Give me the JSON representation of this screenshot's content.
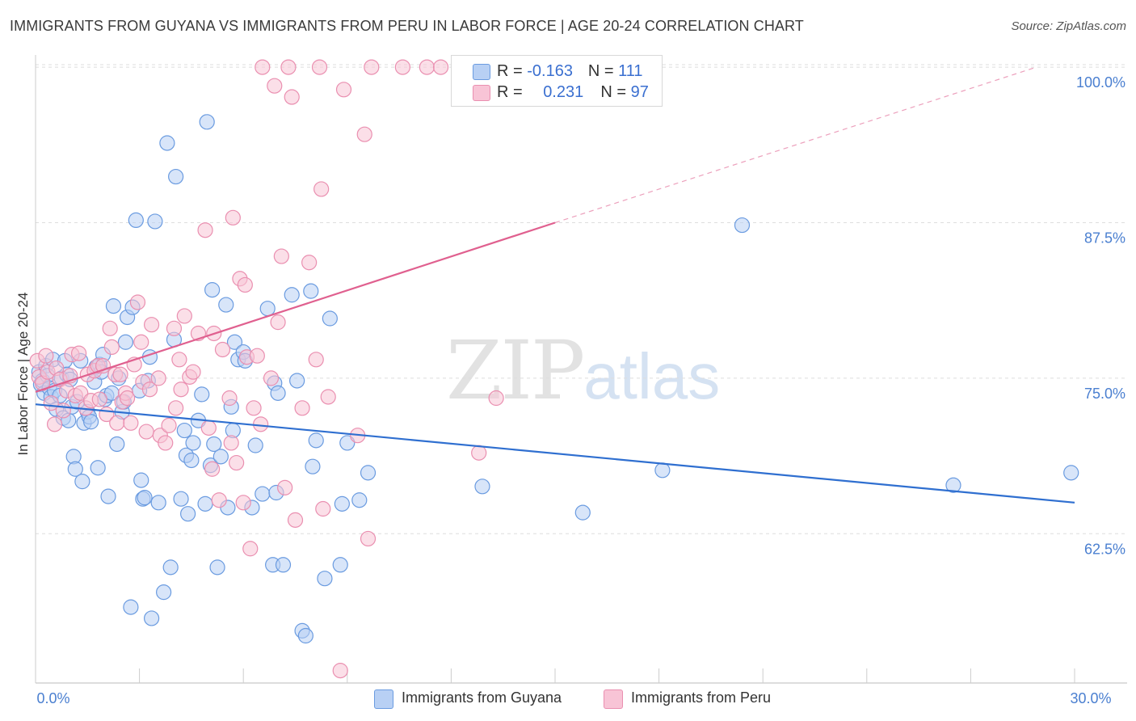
{
  "header": {
    "title": "IMMIGRANTS FROM GUYANA VS IMMIGRANTS FROM PERU IN LABOR FORCE | AGE 20-24 CORRELATION CHART",
    "source": "Source: ZipAtlas.com"
  },
  "watermark": {
    "zip": "ZIP",
    "atlas": "atlas"
  },
  "legend": {
    "rows": [
      {
        "r_label": "R =",
        "r_value": "-0.163",
        "n_label": "N =",
        "n_value": "111"
      },
      {
        "r_label": "R =",
        "r_value": "0.231",
        "n_label": "N =",
        "n_value": "97"
      }
    ]
  },
  "colors": {
    "guyana_fill": "#b8d0f4",
    "guyana_stroke": "#6a9be0",
    "guyana_line": "#2f6fd0",
    "peru_fill": "#f8c4d6",
    "peru_stroke": "#ea8fb0",
    "peru_line": "#e0608f",
    "grid": "#dddddd",
    "tick_label": "#4a7fd0"
  },
  "chart_data": {
    "type": "scatter",
    "title": "IMMIGRANTS FROM GUYANA VS IMMIGRANTS FROM PERU IN LABOR FORCE | AGE 20-24 CORRELATION CHART",
    "xlabel": "",
    "ylabel": "In Labor Force | Age 20-24",
    "xlim": [
      0,
      30
    ],
    "ylim": [
      50.5,
      101.5
    ],
    "x_tick_labels": [
      {
        "value": 0,
        "label": "0.0%"
      },
      {
        "value": 30,
        "label": "30.0%"
      }
    ],
    "x_minor_ticks": [
      0,
      3,
      6,
      9,
      12,
      15,
      18,
      21,
      24,
      27,
      30
    ],
    "y_ticks": [
      {
        "value": 100,
        "label": "100.0%"
      },
      {
        "value": 87.5,
        "label": "87.5%"
      },
      {
        "value": 75,
        "label": "75.0%"
      },
      {
        "value": 62.5,
        "label": "62.5%"
      }
    ],
    "grid": true,
    "legend_position": "top-center and bottom",
    "series": [
      {
        "name": "Immigrants from Guyana",
        "R": -0.163,
        "N": 111,
        "trend": {
          "x0": 0,
          "y0": 72.9,
          "x1": 30,
          "y1": 65.0,
          "dashed_to": null
        },
        "points": [
          [
            0.1,
            75.5
          ],
          [
            0.15,
            74.5
          ],
          [
            0.2,
            74.8
          ],
          [
            0.25,
            73.8
          ],
          [
            0.3,
            76.0
          ],
          [
            0.35,
            75.2
          ],
          [
            0.4,
            74.2
          ],
          [
            0.45,
            73.5
          ],
          [
            0.5,
            76.5
          ],
          [
            0.55,
            74.0
          ],
          [
            0.6,
            72.5
          ],
          [
            0.7,
            73.6
          ],
          [
            0.75,
            75.0
          ],
          [
            0.8,
            71.8
          ],
          [
            0.85,
            76.4
          ],
          [
            0.9,
            75.3
          ],
          [
            0.95,
            71.6
          ],
          [
            1.0,
            74.9
          ],
          [
            1.05,
            72.7
          ],
          [
            1.1,
            68.7
          ],
          [
            1.15,
            67.7
          ],
          [
            1.2,
            73.1
          ],
          [
            1.3,
            76.4
          ],
          [
            1.35,
            66.7
          ],
          [
            1.4,
            71.4
          ],
          [
            1.5,
            72.3
          ],
          [
            1.55,
            71.9
          ],
          [
            1.6,
            71.5
          ],
          [
            1.7,
            74.7
          ],
          [
            1.75,
            75.9
          ],
          [
            1.8,
            67.8
          ],
          [
            1.85,
            76.1
          ],
          [
            1.9,
            75.5
          ],
          [
            1.95,
            76.9
          ],
          [
            2.0,
            73.3
          ],
          [
            2.05,
            73.6
          ],
          [
            2.1,
            65.5
          ],
          [
            2.2,
            73.8
          ],
          [
            2.25,
            80.8
          ],
          [
            2.35,
            69.7
          ],
          [
            2.4,
            75.0
          ],
          [
            2.5,
            72.3
          ],
          [
            2.55,
            73.1
          ],
          [
            2.6,
            77.9
          ],
          [
            2.65,
            79.9
          ],
          [
            2.75,
            56.6
          ],
          [
            2.8,
            80.7
          ],
          [
            2.9,
            87.7
          ],
          [
            3.0,
            74.0
          ],
          [
            3.05,
            66.8
          ],
          [
            3.1,
            65.3
          ],
          [
            3.15,
            65.4
          ],
          [
            3.25,
            74.8
          ],
          [
            3.3,
            76.7
          ],
          [
            3.35,
            55.7
          ],
          [
            3.45,
            87.6
          ],
          [
            3.55,
            65.0
          ],
          [
            3.7,
            57.8
          ],
          [
            3.8,
            93.9
          ],
          [
            3.9,
            59.8
          ],
          [
            4.0,
            78.1
          ],
          [
            4.05,
            91.2
          ],
          [
            4.2,
            65.3
          ],
          [
            4.3,
            70.8
          ],
          [
            4.35,
            68.8
          ],
          [
            4.4,
            64.1
          ],
          [
            4.5,
            68.4
          ],
          [
            4.55,
            69.8
          ],
          [
            4.7,
            71.6
          ],
          [
            4.8,
            73.7
          ],
          [
            4.9,
            64.9
          ],
          [
            4.95,
            95.6
          ],
          [
            5.05,
            68.0
          ],
          [
            5.1,
            82.1
          ],
          [
            5.15,
            69.7
          ],
          [
            5.25,
            59.8
          ],
          [
            5.35,
            68.7
          ],
          [
            5.5,
            80.9
          ],
          [
            5.55,
            64.6
          ],
          [
            5.65,
            72.7
          ],
          [
            5.7,
            70.8
          ],
          [
            5.75,
            77.9
          ],
          [
            5.85,
            76.5
          ],
          [
            6.0,
            77.1
          ],
          [
            6.05,
            76.4
          ],
          [
            6.25,
            64.6
          ],
          [
            6.35,
            69.6
          ],
          [
            6.55,
            65.7
          ],
          [
            6.7,
            80.6
          ],
          [
            6.85,
            60.0
          ],
          [
            6.9,
            74.6
          ],
          [
            6.95,
            65.8
          ],
          [
            7.0,
            73.8
          ],
          [
            7.15,
            60.0
          ],
          [
            7.4,
            81.7
          ],
          [
            7.55,
            74.8
          ],
          [
            7.7,
            54.7
          ],
          [
            7.8,
            54.3
          ],
          [
            7.95,
            82.0
          ],
          [
            8.0,
            67.9
          ],
          [
            8.1,
            70.0
          ],
          [
            8.35,
            58.9
          ],
          [
            8.5,
            79.8
          ],
          [
            8.8,
            60.0
          ],
          [
            8.85,
            64.9
          ],
          [
            9.0,
            69.8
          ],
          [
            9.35,
            65.2
          ],
          [
            9.6,
            67.4
          ],
          [
            12.9,
            66.3
          ],
          [
            15.8,
            64.2
          ],
          [
            18.1,
            67.6
          ],
          [
            20.4,
            87.3
          ],
          [
            26.5,
            66.4
          ],
          [
            29.9,
            67.4
          ]
        ]
      },
      {
        "name": "Immigrants from Peru",
        "R": 0.231,
        "N": 97,
        "trend": {
          "x0": 0,
          "y0": 73.9,
          "x1": 15.0,
          "y1": 87.5,
          "dashed_to": {
            "x": 28.9,
            "y": 100.0
          }
        },
        "points": [
          [
            0.05,
            76.4
          ],
          [
            0.1,
            75.1
          ],
          [
            0.2,
            74.6
          ],
          [
            0.3,
            76.8
          ],
          [
            0.35,
            75.5
          ],
          [
            0.45,
            73.0
          ],
          [
            0.55,
            71.3
          ],
          [
            0.6,
            75.8
          ],
          [
            0.7,
            74.9
          ],
          [
            0.8,
            72.4
          ],
          [
            0.9,
            74.0
          ],
          [
            1.0,
            75.2
          ],
          [
            1.05,
            76.9
          ],
          [
            1.15,
            73.6
          ],
          [
            1.25,
            77.0
          ],
          [
            1.3,
            73.8
          ],
          [
            1.45,
            72.6
          ],
          [
            1.5,
            75.3
          ],
          [
            1.6,
            73.2
          ],
          [
            1.7,
            75.6
          ],
          [
            1.8,
            76.0
          ],
          [
            1.85,
            73.3
          ],
          [
            1.95,
            76.0
          ],
          [
            2.05,
            72.1
          ],
          [
            2.15,
            79.0
          ],
          [
            2.2,
            77.5
          ],
          [
            2.3,
            75.3
          ],
          [
            2.35,
            71.4
          ],
          [
            2.45,
            75.3
          ],
          [
            2.5,
            73.1
          ],
          [
            2.6,
            73.8
          ],
          [
            2.65,
            73.4
          ],
          [
            2.75,
            71.4
          ],
          [
            2.85,
            76.1
          ],
          [
            2.95,
            81.1
          ],
          [
            3.05,
            77.9
          ],
          [
            3.1,
            74.7
          ],
          [
            3.2,
            70.7
          ],
          [
            3.3,
            74.1
          ],
          [
            3.35,
            79.3
          ],
          [
            3.55,
            75.0
          ],
          [
            3.6,
            70.4
          ],
          [
            3.75,
            69.8
          ],
          [
            3.85,
            71.2
          ],
          [
            4.0,
            79.0
          ],
          [
            4.05,
            72.6
          ],
          [
            4.15,
            76.5
          ],
          [
            4.2,
            74.1
          ],
          [
            4.3,
            80.0
          ],
          [
            4.45,
            75.1
          ],
          [
            4.55,
            75.5
          ],
          [
            4.7,
            78.6
          ],
          [
            4.9,
            86.9
          ],
          [
            5.0,
            71.0
          ],
          [
            5.1,
            67.7
          ],
          [
            5.15,
            78.6
          ],
          [
            5.3,
            65.2
          ],
          [
            5.4,
            77.3
          ],
          [
            5.6,
            73.4
          ],
          [
            5.65,
            69.8
          ],
          [
            5.7,
            87.9
          ],
          [
            5.8,
            68.2
          ],
          [
            5.9,
            83.0
          ],
          [
            6.0,
            65.0
          ],
          [
            6.05,
            82.5
          ],
          [
            6.1,
            76.7
          ],
          [
            6.2,
            61.3
          ],
          [
            6.3,
            72.6
          ],
          [
            6.4,
            76.8
          ],
          [
            6.5,
            71.3
          ],
          [
            6.55,
            100.0
          ],
          [
            6.8,
            75.0
          ],
          [
            6.9,
            98.5
          ],
          [
            7.0,
            79.5
          ],
          [
            7.1,
            84.8
          ],
          [
            7.2,
            66.2
          ],
          [
            7.3,
            100.0
          ],
          [
            7.4,
            97.6
          ],
          [
            7.5,
            63.6
          ],
          [
            7.7,
            72.6
          ],
          [
            7.9,
            84.3
          ],
          [
            8.1,
            76.5
          ],
          [
            8.2,
            100.0
          ],
          [
            8.25,
            90.2
          ],
          [
            8.3,
            64.5
          ],
          [
            8.45,
            73.5
          ],
          [
            8.8,
            51.5
          ],
          [
            8.9,
            98.2
          ],
          [
            9.3,
            70.4
          ],
          [
            9.5,
            94.6
          ],
          [
            9.6,
            62.1
          ],
          [
            9.7,
            100.0
          ],
          [
            10.6,
            100.0
          ],
          [
            11.3,
            100.0
          ],
          [
            11.7,
            100.0
          ],
          [
            13.3,
            73.4
          ],
          [
            12.8,
            69.0
          ]
        ]
      }
    ]
  },
  "bottom_legend": {
    "items": [
      {
        "label": "Immigrants from Guyana"
      },
      {
        "label": "Immigrants from Peru"
      }
    ]
  }
}
